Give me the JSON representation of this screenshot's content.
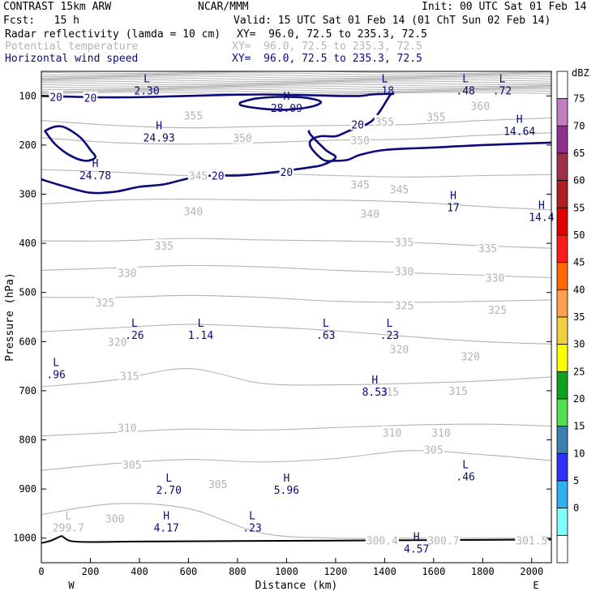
{
  "header": {
    "model": "CONTRAST 15km ARW",
    "org": "NCAR/MMM",
    "init": "Init: 00 UTC Sat 01 Feb 14",
    "fcst": "Fcst:   15 h",
    "valid": "Valid: 15 UTC Sat 01 Feb 14 (01 ChT Sun 02 Feb 14)",
    "fields": [
      {
        "name": "Radar reflectivity (lamda = 10 cm)",
        "xy": "XY=  96.0, 72.5 to 235.3, 72.5",
        "color": "#000000"
      },
      {
        "name": "Potential temperature",
        "xy": "XY=  96.0, 72.5 to 235.3, 72.5",
        "color": "#b4b4b4"
      },
      {
        "name": "Horizontal wind speed",
        "xy": "XY=  96.0, 72.5 to 235.3, 72.5",
        "color": "#0a0a7a"
      }
    ]
  },
  "chart_data": {
    "type": "contour",
    "xlabel": "Distance (km)",
    "ylabel": "Pressure (hPa)",
    "xlim": [
      0,
      2080
    ],
    "ylim": [
      1050,
      50
    ],
    "x_ticks": [
      0,
      200,
      400,
      600,
      800,
      1000,
      1200,
      1400,
      1600,
      1800,
      2000
    ],
    "y_ticks": [
      100,
      200,
      300,
      400,
      500,
      600,
      700,
      800,
      900,
      1000
    ],
    "endpoints": {
      "left": "W",
      "right": "E"
    },
    "colorbar": {
      "unit": "dBZ",
      "levels": [
        "75",
        "70",
        "65",
        "60",
        "55",
        "50",
        "45",
        "40",
        "35",
        "30",
        "25",
        "20",
        "15",
        "10",
        "5",
        "0"
      ],
      "colors": [
        "#ffffff",
        "#c080c0",
        "#8f3090",
        "#a0304a",
        "#b02020",
        "#e00000",
        "#ff1a1a",
        "#ff6a00",
        "#ffa050",
        "#f0d040",
        "#ffff00",
        "#10a020",
        "#50e050",
        "#3a80b0",
        "#3030ff",
        "#30b0f0",
        "#80ffff",
        "#ffffff"
      ]
    },
    "theta_contours": [
      {
        "value": "355",
        "x": [
          0,
          300,
          600,
          900,
          1200,
          1500,
          1800,
          2080
        ],
        "y": [
          150,
          160,
          165,
          162,
          160,
          158,
          150,
          145
        ]
      },
      {
        "value": "350",
        "x": [
          0,
          300,
          600,
          900,
          1200,
          1500,
          1800,
          2080
        ],
        "y": [
          185,
          195,
          198,
          195,
          190,
          188,
          180,
          175
        ]
      },
      {
        "value": "345",
        "x": [
          0,
          300,
          600,
          900,
          1200,
          1500,
          1800,
          2080
        ],
        "y": [
          250,
          255,
          262,
          258,
          262,
          265,
          262,
          260
        ]
      },
      {
        "value": "340",
        "x": [
          0,
          300,
          600,
          900,
          1200,
          1500,
          1800,
          2080
        ],
        "y": [
          320,
          312,
          310,
          312,
          312,
          316,
          325,
          332
        ]
      },
      {
        "value": "335",
        "x": [
          0,
          300,
          600,
          900,
          1200,
          1500,
          1800,
          2080
        ],
        "y": [
          395,
          395,
          390,
          393,
          395,
          398,
          405,
          410
        ]
      },
      {
        "value": "330",
        "x": [
          0,
          300,
          600,
          900,
          1200,
          1500,
          1800,
          2080
        ],
        "y": [
          455,
          450,
          445,
          448,
          455,
          460,
          465,
          470
        ]
      },
      {
        "value": "325",
        "x": [
          0,
          300,
          600,
          900,
          1200,
          1500,
          1800,
          2080
        ],
        "y": [
          510,
          510,
          506,
          510,
          518,
          520,
          518,
          515
        ]
      },
      {
        "value": "320",
        "x": [
          0,
          300,
          600,
          900,
          1200,
          1500,
          1800,
          2080
        ],
        "y": [
          580,
          572,
          565,
          570,
          578,
          590,
          600,
          605
        ]
      },
      {
        "value": "315",
        "x": [
          0,
          300,
          600,
          900,
          1200,
          1500,
          1800,
          2080
        ],
        "y": [
          692,
          678,
          655,
          685,
          688,
          685,
          680,
          672
        ]
      },
      {
        "value": "310",
        "x": [
          0,
          300,
          600,
          900,
          1200,
          1500,
          1800,
          2080
        ],
        "y": [
          792,
          785,
          778,
          780,
          775,
          770,
          768,
          772
        ]
      },
      {
        "value": "305",
        "x": [
          0,
          300,
          600,
          900,
          1200,
          1500,
          1800,
          2080
        ],
        "y": [
          862,
          848,
          840,
          845,
          838,
          822,
          830,
          842
        ]
      },
      {
        "value": "300",
        "x": [
          0,
          300,
          600,
          900,
          1200,
          1500,
          1800,
          2080
        ],
        "y": [
          952,
          930,
          940,
          990,
          1000,
          1000,
          1000,
          1000
        ]
      }
    ],
    "theta_labels": [
      {
        "text": "360",
        "x": 1790,
        "y": 120
      },
      {
        "text": "355",
        "x": 620,
        "y": 140
      },
      {
        "text": "355",
        "x": 1400,
        "y": 152
      },
      {
        "text": "355",
        "x": 1610,
        "y": 142
      },
      {
        "text": "350",
        "x": 820,
        "y": 185
      },
      {
        "text": "350",
        "x": 1300,
        "y": 190
      },
      {
        "text": "345",
        "x": 640,
        "y": 262
      },
      {
        "text": "345",
        "x": 1300,
        "y": 280
      },
      {
        "text": "345",
        "x": 1460,
        "y": 290
      },
      {
        "text": "340",
        "x": 620,
        "y": 335
      },
      {
        "text": "340",
        "x": 1340,
        "y": 340
      },
      {
        "text": "335",
        "x": 500,
        "y": 405
      },
      {
        "text": "335",
        "x": 1480,
        "y": 397
      },
      {
        "text": "335",
        "x": 1820,
        "y": 410
      },
      {
        "text": "330",
        "x": 350,
        "y": 460
      },
      {
        "text": "330",
        "x": 1480,
        "y": 457
      },
      {
        "text": "330",
        "x": 1850,
        "y": 470
      },
      {
        "text": "325",
        "x": 260,
        "y": 520
      },
      {
        "text": "325",
        "x": 1480,
        "y": 526
      },
      {
        "text": "325",
        "x": 1860,
        "y": 535
      },
      {
        "text": "320",
        "x": 310,
        "y": 600
      },
      {
        "text": "320",
        "x": 1460,
        "y": 615
      },
      {
        "text": "320",
        "x": 1750,
        "y": 630
      },
      {
        "text": "315",
        "x": 360,
        "y": 670
      },
      {
        "text": "315",
        "x": 1420,
        "y": 702
      },
      {
        "text": "315",
        "x": 1700,
        "y": 700
      },
      {
        "text": "310",
        "x": 350,
        "y": 775
      },
      {
        "text": "310",
        "x": 1430,
        "y": 785
      },
      {
        "text": "310",
        "x": 1630,
        "y": 785
      },
      {
        "text": "305",
        "x": 370,
        "y": 850
      },
      {
        "text": "305",
        "x": 720,
        "y": 890
      },
      {
        "text": "305",
        "x": 1600,
        "y": 820
      },
      {
        "text": "300",
        "x": 300,
        "y": 960
      },
      {
        "text": "300.4",
        "x": 1390,
        "y": 1005
      },
      {
        "text": "300.7",
        "x": 1640,
        "y": 1005
      },
      {
        "text": "301.5",
        "x": 2000,
        "y": 1005
      }
    ],
    "wind_contours": [
      {
        "value": "20",
        "x": [
          0,
          150,
          300,
          450,
          600,
          750,
          900,
          1050,
          1200,
          1300,
          1350,
          1430,
          1420,
          1350,
          1250,
          1200,
          1140,
          1100,
          1100,
          1150,
          1200,
          1250,
          1300,
          1400,
          1600,
          1800,
          2080
        ],
        "y": [
          100,
          102,
          103,
          102,
          100,
          98,
          97,
          98,
          100,
          100,
          97,
          96,
          100,
          150,
          172,
          182,
          182,
          190,
          205,
          230,
          232,
          230,
          220,
          210,
          205,
          200,
          195
        ],
        "closed": false,
        "lw": 2.6
      },
      {
        "value": "20",
        "x": [
          0,
          100,
          200,
          300,
          400,
          500,
          600,
          700,
          800,
          900,
          1000,
          1100,
          1150,
          1200,
          1160,
          1100,
          1090
        ],
        "y": [
          270,
          285,
          297,
          295,
          285,
          280,
          268,
          262,
          262,
          258,
          252,
          245,
          240,
          225,
          210,
          180,
          170
        ],
        "closed": false,
        "lw": 2.6
      },
      {
        "value": "20",
        "x": [
          20,
          60,
          100,
          160,
          200,
          220,
          180,
          120,
          60,
          20
        ],
        "y": [
          170,
          162,
          165,
          185,
          210,
          225,
          232,
          222,
          200,
          175
        ],
        "closed": true,
        "lw": 2.6
      },
      {
        "value": "",
        "x": [
          820,
          880,
          980,
          1080,
          1140,
          1100,
          1000,
          900,
          820,
          810
        ],
        "y": [
          112,
          105,
          102,
          104,
          112,
          122,
          128,
          126,
          120,
          115
        ],
        "closed": true,
        "lw": 2.6
      }
    ],
    "wind_labels": [
      {
        "text": "20",
        "x": 60,
        "y": 102
      },
      {
        "text": "20",
        "x": 200,
        "y": 104
      },
      {
        "text": "20",
        "x": 1290,
        "y": 158
      },
      {
        "text": "20",
        "x": 1000,
        "y": 255
      },
      {
        "text": "20",
        "x": 720,
        "y": 262
      }
    ],
    "extrema": [
      {
        "type": "L",
        "value": "2.30",
        "x": 430,
        "y": 72
      },
      {
        "type": "H",
        "value": "28.09",
        "x": 1000,
        "y": 108
      },
      {
        "type": "L",
        "value": ".18",
        "x": 1400,
        "y": 72
      },
      {
        "type": "L",
        "value": ".48",
        "x": 1730,
        "y": 72
      },
      {
        "type": "L",
        "value": ".72",
        "x": 1880,
        "y": 72
      },
      {
        "type": "H",
        "value": "24.93",
        "x": 480,
        "y": 168
      },
      {
        "type": "H",
        "value": "14.64",
        "x": 1950,
        "y": 155
      },
      {
        "type": "H",
        "value": "24.78",
        "x": 220,
        "y": 245
      },
      {
        "type": "H",
        "value": "17",
        "x": 1680,
        "y": 310
      },
      {
        "type": "H",
        "value": "14.4",
        "x": 2040,
        "y": 330
      },
      {
        "type": "L",
        "value": ".26",
        "x": 380,
        "y": 570
      },
      {
        "type": "L",
        "value": "1.14",
        "x": 650,
        "y": 570
      },
      {
        "type": "L",
        "value": ".63",
        "x": 1160,
        "y": 570
      },
      {
        "type": "L",
        "value": ".23",
        "x": 1420,
        "y": 570
      },
      {
        "type": "L",
        "value": ".96",
        "x": 60,
        "y": 650
      },
      {
        "type": "H",
        "value": "8.53",
        "x": 1360,
        "y": 685
      },
      {
        "type": "L",
        "value": ".46",
        "x": 1730,
        "y": 858
      },
      {
        "type": "L",
        "value": "2.70",
        "x": 520,
        "y": 885
      },
      {
        "type": "H",
        "value": "5.96",
        "x": 1000,
        "y": 885
      },
      {
        "type": "H",
        "value": "4.17",
        "x": 510,
        "y": 962
      },
      {
        "type": "L",
        "value": ".23",
        "x": 860,
        "y": 962
      },
      {
        "type": "H",
        "value": "4.57",
        "x": 1530,
        "y": 1005
      }
    ],
    "theta_extrema": [
      {
        "type": "L",
        "value": "299.7",
        "x": 110,
        "y": 962
      }
    ],
    "terrain": {
      "x": [
        0,
        40,
        80,
        90,
        120,
        200,
        400,
        800,
        1200,
        1600,
        2080
      ],
      "y": [
        1010,
        1005,
        996,
        998,
        1006,
        1008,
        1007,
        1006,
        1005,
        1004,
        1003
      ]
    }
  }
}
